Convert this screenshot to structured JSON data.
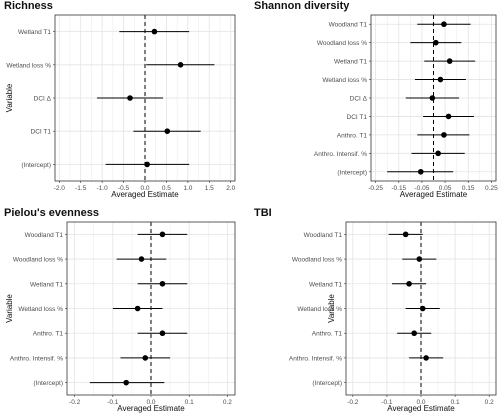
{
  "colors": {
    "grid": "#e3e3e3",
    "frame": "#333333",
    "tick_text": "#4d4d4d",
    "point": "#000000",
    "zero_line": "#000000"
  },
  "chart_data": [
    {
      "type": "scatter",
      "title": "Richness",
      "xlabel": "Averaged Estimate",
      "ylabel": "Variable",
      "xlim": [
        -2.1,
        2.1
      ],
      "xticks": [
        -2.0,
        -1.5,
        -1.0,
        -0.5,
        0.0,
        0.5,
        1.0,
        1.5,
        2.0
      ],
      "xtick_labels": [
        "-2.0",
        "-1.5",
        "-1.0",
        "-0.5",
        "0.0",
        "0.5",
        "1.0",
        "1.5",
        "2.0"
      ],
      "grid": true,
      "zero_line": 0,
      "variables": [
        {
          "label": "Wetland T1",
          "estimate": 0.22,
          "lower": -0.6,
          "upper": 1.03
        },
        {
          "label": "Wetland loss %",
          "estimate": 0.83,
          "lower": 0.03,
          "upper": 1.62
        },
        {
          "label": "DCI Δ",
          "estimate": -0.35,
          "lower": -1.12,
          "upper": 0.42
        },
        {
          "label": "DCI T1",
          "estimate": 0.52,
          "lower": -0.27,
          "upper": 1.3
        },
        {
          "label": "(Intercept)",
          "estimate": 0.05,
          "lower": -0.92,
          "upper": 1.03
        }
      ]
    },
    {
      "type": "scatter",
      "title": "Shannon diversity",
      "xlabel": "Averaged Estimate",
      "ylabel": "",
      "xlim": [
        -0.27,
        0.27
      ],
      "xticks": [
        -0.25,
        -0.15,
        -0.05,
        0.05,
        0.15,
        0.25
      ],
      "xtick_labels": [
        "-0.25",
        "-0.15",
        "-0.05",
        "0.05",
        "0.15",
        "0.25"
      ],
      "grid": true,
      "zero_line": 0,
      "variables": [
        {
          "label": "Woodland T1",
          "estimate": 0.045,
          "lower": -0.07,
          "upper": 0.16
        },
        {
          "label": "Woodland loss %",
          "estimate": 0.01,
          "lower": -0.1,
          "upper": 0.12
        },
        {
          "label": "Wetland T1",
          "estimate": 0.07,
          "lower": -0.04,
          "upper": 0.18
        },
        {
          "label": "Wetland loss %",
          "estimate": 0.03,
          "lower": -0.08,
          "upper": 0.14
        },
        {
          "label": "DCI Δ",
          "estimate": -0.005,
          "lower": -0.12,
          "upper": 0.11
        },
        {
          "label": "DCI T1",
          "estimate": 0.065,
          "lower": -0.045,
          "upper": 0.175
        },
        {
          "label": "Anthro. T1",
          "estimate": 0.045,
          "lower": -0.07,
          "upper": 0.155
        },
        {
          "label": "Anthro. Intensif. %",
          "estimate": 0.02,
          "lower": -0.095,
          "upper": 0.135
        },
        {
          "label": "(Intercept)",
          "estimate": -0.055,
          "lower": -0.2,
          "upper": 0.085
        }
      ]
    },
    {
      "type": "scatter",
      "title": "Pielou's evenness",
      "xlabel": "Averaged Estimate",
      "ylabel": "Variable",
      "xlim": [
        -0.22,
        0.22
      ],
      "xticks": [
        -0.2,
        -0.1,
        0.0,
        0.1,
        0.2
      ],
      "xtick_labels": [
        "-0.2",
        "-0.1",
        "0.0",
        "0.1",
        "0.2"
      ],
      "grid": true,
      "zero_line": 0,
      "variables": [
        {
          "label": "Woodland T1",
          "estimate": 0.03,
          "lower": -0.035,
          "upper": 0.095
        },
        {
          "label": "Woodland loss %",
          "estimate": -0.025,
          "lower": -0.09,
          "upper": 0.04
        },
        {
          "label": "Wetland T1",
          "estimate": 0.03,
          "lower": -0.035,
          "upper": 0.095
        },
        {
          "label": "Wetland loss %",
          "estimate": -0.035,
          "lower": -0.1,
          "upper": 0.03
        },
        {
          "label": "Anthro. T1",
          "estimate": 0.03,
          "lower": -0.035,
          "upper": 0.095
        },
        {
          "label": "Anthro. Intensif. %",
          "estimate": -0.015,
          "lower": -0.08,
          "upper": 0.05
        },
        {
          "label": "(Intercept)",
          "estimate": -0.065,
          "lower": -0.16,
          "upper": 0.035
        }
      ]
    },
    {
      "type": "scatter",
      "title": "TBI",
      "xlabel": "Averaged Estimate",
      "ylabel": "Variable",
      "xlim": [
        -0.22,
        0.22
      ],
      "xticks": [
        -0.2,
        -0.1,
        0.0,
        0.1,
        0.2
      ],
      "xtick_labels": [
        "-0.2",
        "-0.1",
        "0.0",
        "0.1",
        "0.2"
      ],
      "grid": true,
      "zero_line": 0,
      "variables": [
        {
          "label": "Woodland T1",
          "estimate": -0.045,
          "lower": -0.095,
          "upper": 0.005
        },
        {
          "label": "Woodland loss %",
          "estimate": -0.005,
          "lower": -0.055,
          "upper": 0.045
        },
        {
          "label": "Wetland T1",
          "estimate": -0.035,
          "lower": -0.085,
          "upper": 0.015
        },
        {
          "label": "Wetland loss %",
          "estimate": 0.005,
          "lower": -0.045,
          "upper": 0.055
        },
        {
          "label": "Anthro. T1",
          "estimate": -0.02,
          "lower": -0.07,
          "upper": 0.03
        },
        {
          "label": "Anthro. Intensif. %",
          "estimate": 0.015,
          "lower": -0.035,
          "upper": 0.065
        },
        {
          "label": "(Intercept)",
          "estimate": null,
          "lower": null,
          "upper": null
        }
      ]
    }
  ]
}
